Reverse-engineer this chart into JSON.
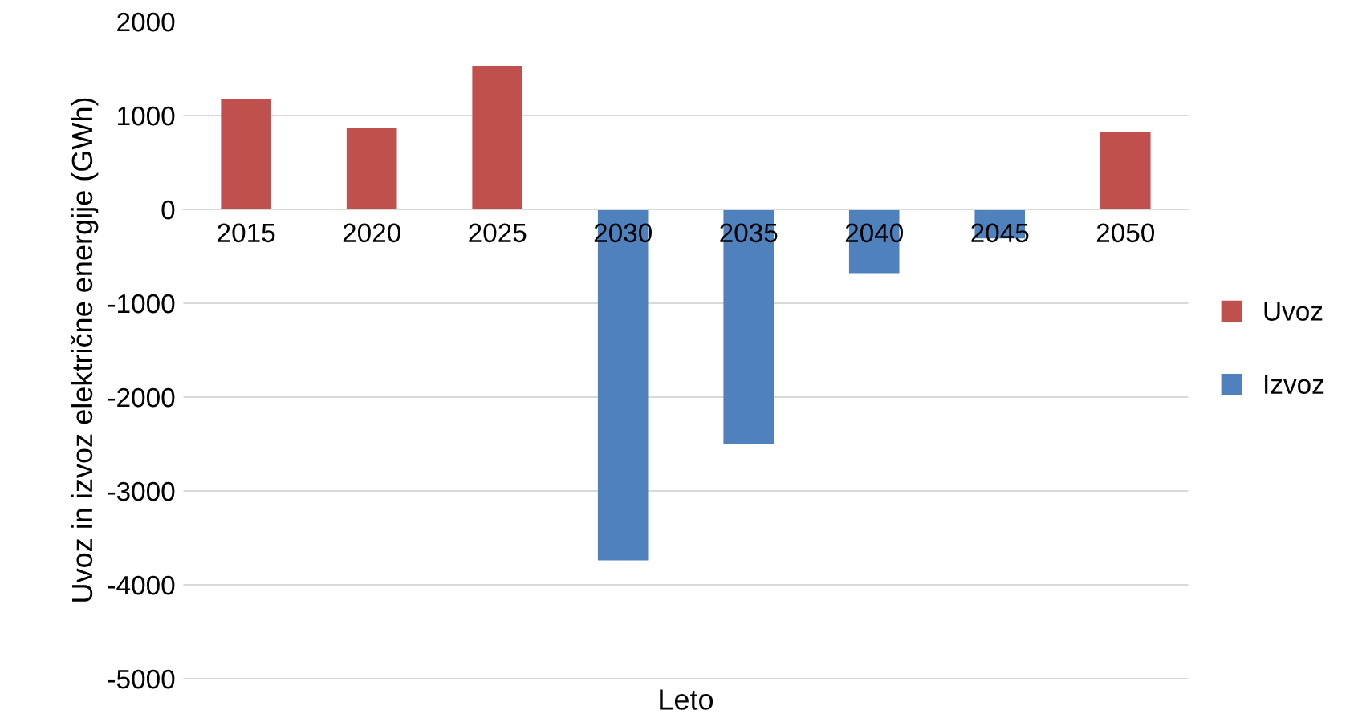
{
  "chart_data": {
    "type": "bar",
    "xlabel": "Leto",
    "ylabel": "Uvoz in izvoz električne energije (GWh)",
    "categories": [
      "2015",
      "2020",
      "2025",
      "2030",
      "2035",
      "2040",
      "2045",
      "2050"
    ],
    "series": [
      {
        "name": "Uvoz",
        "color": "#c0504d",
        "values": [
          1180,
          870,
          1530,
          null,
          null,
          null,
          null,
          830
        ]
      },
      {
        "name": "Izvoz",
        "color": "#4f81bd",
        "values": [
          null,
          null,
          null,
          -3740,
          -2500,
          -680,
          -310,
          null
        ]
      }
    ],
    "ylim": [
      -5000,
      2000
    ],
    "yticks": [
      -5000,
      -4000,
      -3000,
      -2000,
      -1000,
      0,
      1000,
      2000
    ],
    "grid": "y",
    "legend": "right"
  }
}
